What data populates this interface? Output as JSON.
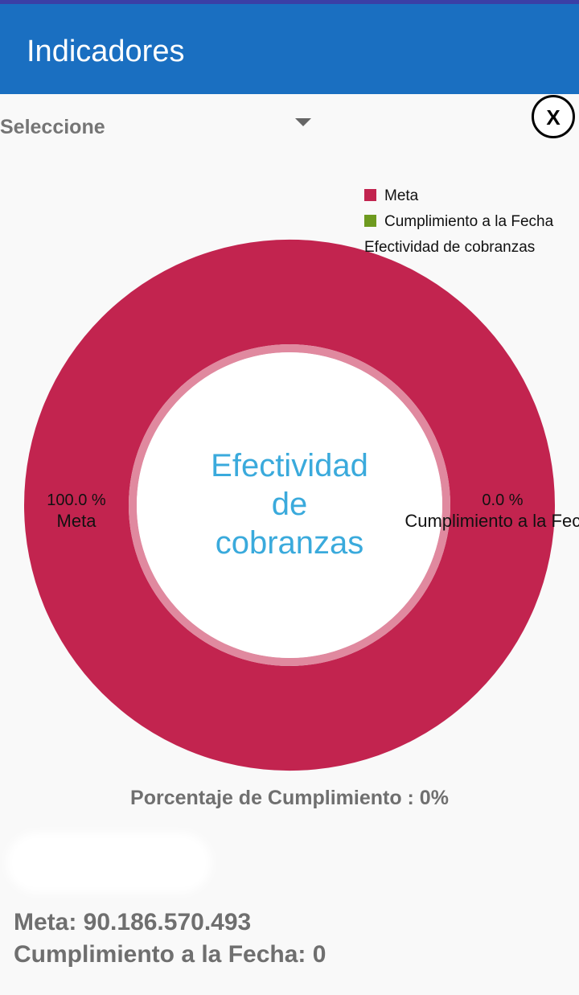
{
  "header": {
    "title": "Indicadores"
  },
  "selector": {
    "placeholder": "Seleccione"
  },
  "close_button": {
    "label": "X"
  },
  "chart_data": {
    "type": "donut",
    "title": "Efectividad de cobranzas",
    "categories": [
      "Meta",
      "Cumplimiento a la Fecha"
    ],
    "values": [
      100.0,
      0.0
    ],
    "value_labels": [
      "100.0 %",
      "0.0 %"
    ],
    "colors": [
      "#c2244f",
      "#6e9a1f"
    ]
  },
  "summary": {
    "percentage": "Porcentaje de Cumplimiento : 0%",
    "meta": "Meta: 90.186.570.493",
    "cumplimiento": "Cumplimiento a la Fecha: 0"
  }
}
